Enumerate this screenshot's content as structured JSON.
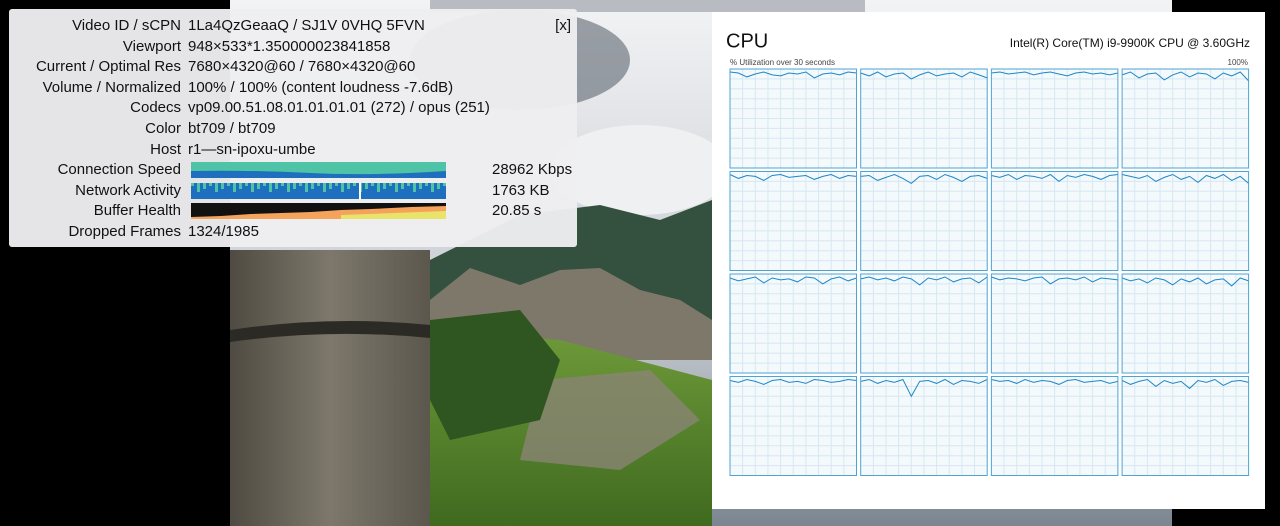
{
  "stats": {
    "close": "[x]",
    "rows": [
      {
        "label": "Video ID / sCPN",
        "value": "1La4QzGeaaQ / SJ1V 0VHQ 5FVN"
      },
      {
        "label": "Viewport",
        "value": "948×533*1.350000023841858"
      },
      {
        "label": "Current / Optimal Res",
        "value": "7680×4320@60 / 7680×4320@60"
      },
      {
        "label": "Volume / Normalized",
        "value": "100% / 100% (content loudness -7.6dB)"
      },
      {
        "label": "Codecs",
        "value": "vp09.00.51.08.01.01.01.01 (272) / opus (251)"
      },
      {
        "label": "Color",
        "value": "bt709 / bt709"
      },
      {
        "label": "Host",
        "value": "r1—sn-ipoxu-umbe"
      },
      {
        "label": "Connection Speed",
        "value": "28962 Kbps"
      },
      {
        "label": "Network Activity",
        "value": "1763 KB"
      },
      {
        "label": "Buffer Health",
        "value": "20.85 s"
      },
      {
        "label": "Dropped Frames",
        "value": "1324/1985"
      }
    ]
  },
  "cpu": {
    "title": "CPU",
    "processor": "Intel(R) Core(TM) i9-9900K CPU @ 3.60GHz",
    "caption": "% Utilization over 30 seconds",
    "max_label": "100%",
    "ylim": [
      0,
      100
    ],
    "graphs": [
      [
        97,
        96,
        92,
        95,
        97,
        94,
        93,
        96,
        95,
        97,
        91,
        95,
        96,
        94,
        97,
        96
      ],
      [
        96,
        93,
        97,
        92,
        95,
        96,
        90,
        94,
        97,
        93,
        95,
        96,
        92,
        97,
        94,
        91
      ],
      [
        96,
        97,
        95,
        96,
        97,
        94,
        96,
        97,
        95,
        93,
        96,
        97,
        95,
        96,
        94,
        96
      ],
      [
        94,
        97,
        91,
        95,
        96,
        89,
        94,
        97,
        92,
        96,
        95,
        90,
        96,
        93,
        97,
        88
      ],
      [
        97,
        93,
        96,
        95,
        91,
        96,
        97,
        94,
        95,
        96,
        92,
        95,
        97,
        93,
        96,
        95
      ],
      [
        95,
        96,
        91,
        94,
        97,
        93,
        88,
        95,
        96,
        92,
        97,
        94,
        90,
        95,
        96,
        93
      ],
      [
        96,
        94,
        97,
        92,
        96,
        95,
        93,
        97,
        90,
        96,
        94,
        97,
        95,
        92,
        96,
        97
      ],
      [
        97,
        95,
        93,
        96,
        90,
        94,
        97,
        92,
        95,
        89,
        96,
        93,
        97,
        91,
        95,
        88
      ],
      [
        96,
        93,
        95,
        97,
        91,
        96,
        94,
        95,
        92,
        97,
        96,
        90,
        95,
        97,
        93,
        96
      ],
      [
        95,
        97,
        94,
        96,
        93,
        97,
        95,
        89,
        96,
        94,
        97,
        92,
        95,
        96,
        91,
        97
      ],
      [
        97,
        94,
        96,
        95,
        93,
        96,
        97,
        90,
        95,
        96,
        94,
        97,
        92,
        96,
        95,
        94
      ],
      [
        96,
        93,
        95,
        91,
        96,
        94,
        89,
        95,
        92,
        96,
        90,
        94,
        95,
        88,
        96,
        93
      ],
      [
        96,
        94,
        97,
        95,
        92,
        96,
        97,
        94,
        95,
        93,
        97,
        96,
        94,
        95,
        97,
        96
      ],
      [
        95,
        97,
        93,
        96,
        94,
        97,
        80,
        95,
        96,
        93,
        97,
        92,
        96,
        95,
        93,
        97
      ],
      [
        97,
        95,
        96,
        93,
        97,
        94,
        96,
        95,
        92,
        96,
        97,
        94,
        95,
        96,
        93,
        95
      ],
      [
        96,
        92,
        95,
        97,
        90,
        96,
        93,
        95,
        88,
        96,
        94,
        97,
        91,
        95,
        96,
        94
      ]
    ]
  }
}
